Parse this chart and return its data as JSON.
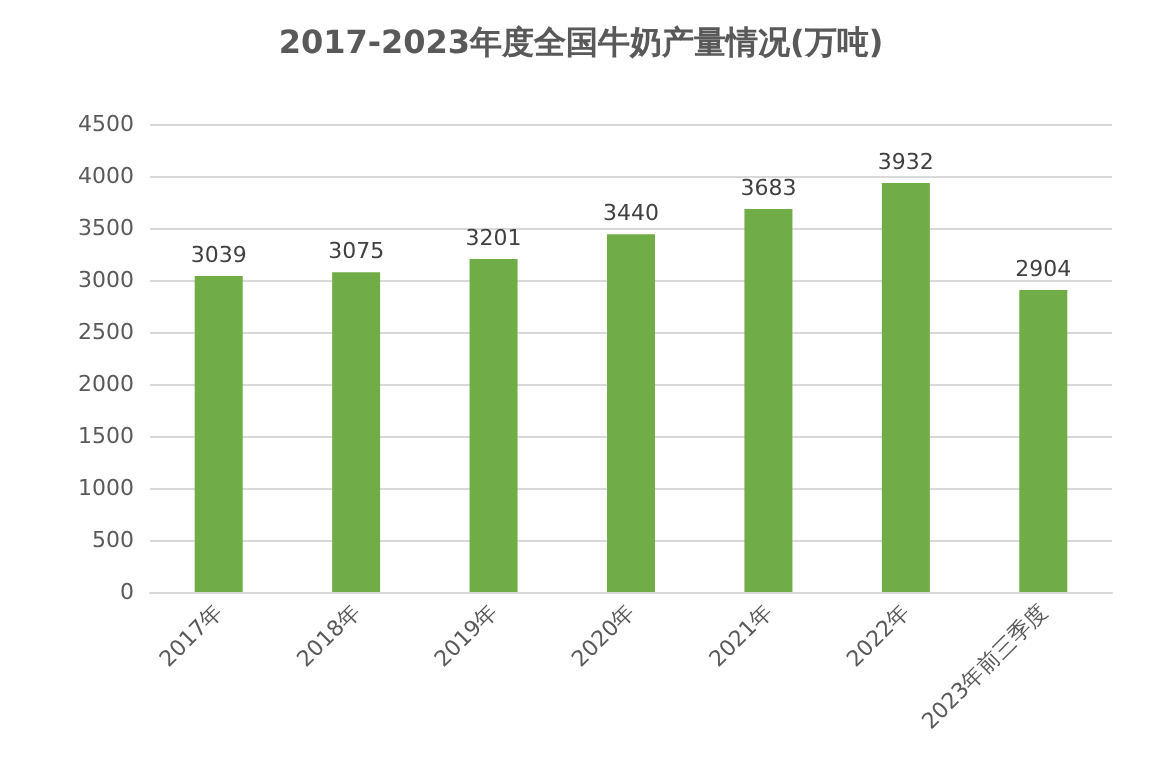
{
  "chart_data": {
    "type": "bar",
    "title": "2017-2023年度全国牛奶产量情况(万吨)",
    "categories": [
      "2017年",
      "2018年",
      "2019年",
      "2020年",
      "2021年",
      "2022年",
      "2023年前三季度"
    ],
    "values": [
      3039,
      3075,
      3201,
      3440,
      3683,
      3932,
      2904
    ],
    "color": "#70ad47",
    "ylim": [
      0,
      4500
    ],
    "yticks": [
      0,
      500,
      1000,
      1500,
      2000,
      2500,
      3000,
      3500,
      4000,
      4500
    ],
    "grid": "y",
    "data_labels": true
  }
}
